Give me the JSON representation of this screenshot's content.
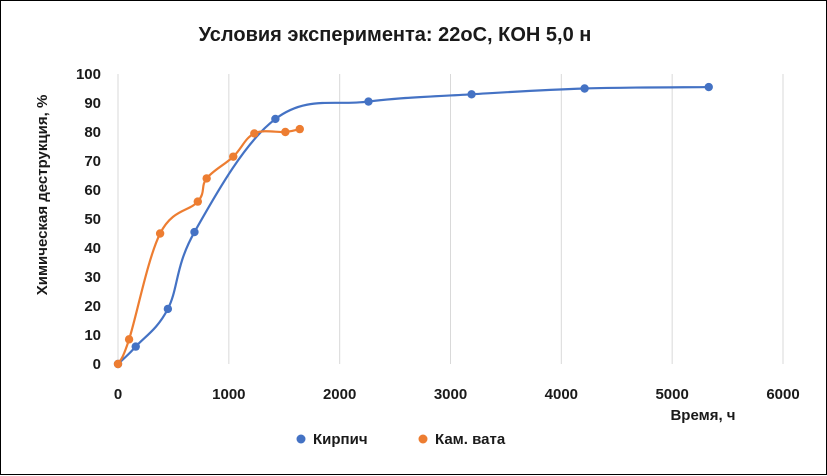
{
  "chart_data": {
    "type": "scatter",
    "title": "Условия эксперимента: 22оС, КОН 5,0 н",
    "xlabel": "Время, ч",
    "ylabel": "Химическая деструкция, %",
    "xlim": [
      0,
      6000
    ],
    "ylim": [
      0,
      100
    ],
    "xticks": [
      "0",
      "1000",
      "2000",
      "3000",
      "4000",
      "5000",
      "6000"
    ],
    "yticks": [
      "0",
      "10",
      "20",
      "30",
      "40",
      "50",
      "60",
      "70",
      "80",
      "90",
      "100"
    ],
    "grid": "vertical",
    "legend_position": "bottom",
    "series": [
      {
        "name": "Кирпич",
        "color": "#4472c4",
        "x": [
          0,
          160,
          450,
          690,
          1420,
          2260,
          3190,
          4210,
          5330
        ],
        "y": [
          0,
          6,
          19,
          45.5,
          84.5,
          90.5,
          93,
          95,
          95.5
        ]
      },
      {
        "name": "Кам. вата",
        "color": "#ed7d31",
        "x": [
          0,
          100,
          380,
          720,
          800,
          1040,
          1230,
          1510,
          1640
        ],
        "y": [
          0,
          8.5,
          45,
          56,
          64,
          71.5,
          79.5,
          80,
          81
        ]
      }
    ]
  }
}
